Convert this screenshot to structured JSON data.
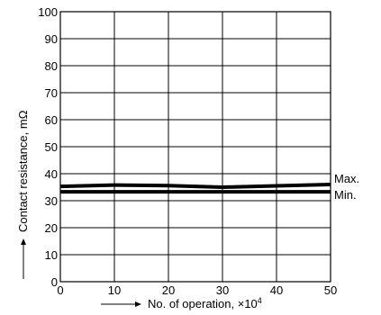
{
  "chart_data": {
    "type": "line",
    "title": "",
    "xlabel": "No. of operation, ×10",
    "xlabel_exponent": "4",
    "ylabel": "Contact resistance, mΩ",
    "xlim": [
      0,
      50
    ],
    "ylim": [
      0,
      100
    ],
    "x_ticks": [
      0,
      10,
      20,
      30,
      40,
      50
    ],
    "y_ticks": [
      0,
      10,
      20,
      30,
      40,
      50,
      60,
      70,
      80,
      90,
      100
    ],
    "grid": true,
    "series": [
      {
        "name": "Max.",
        "x": [
          0,
          10,
          20,
          30,
          40,
          50
        ],
        "values": [
          35.3,
          35.8,
          35.6,
          35.0,
          35.5,
          36.0
        ]
      },
      {
        "name": "Min.",
        "x": [
          0,
          10,
          20,
          30,
          40,
          50
        ],
        "values": [
          33.3,
          33.3,
          33.3,
          33.3,
          33.3,
          33.3
        ]
      }
    ]
  }
}
